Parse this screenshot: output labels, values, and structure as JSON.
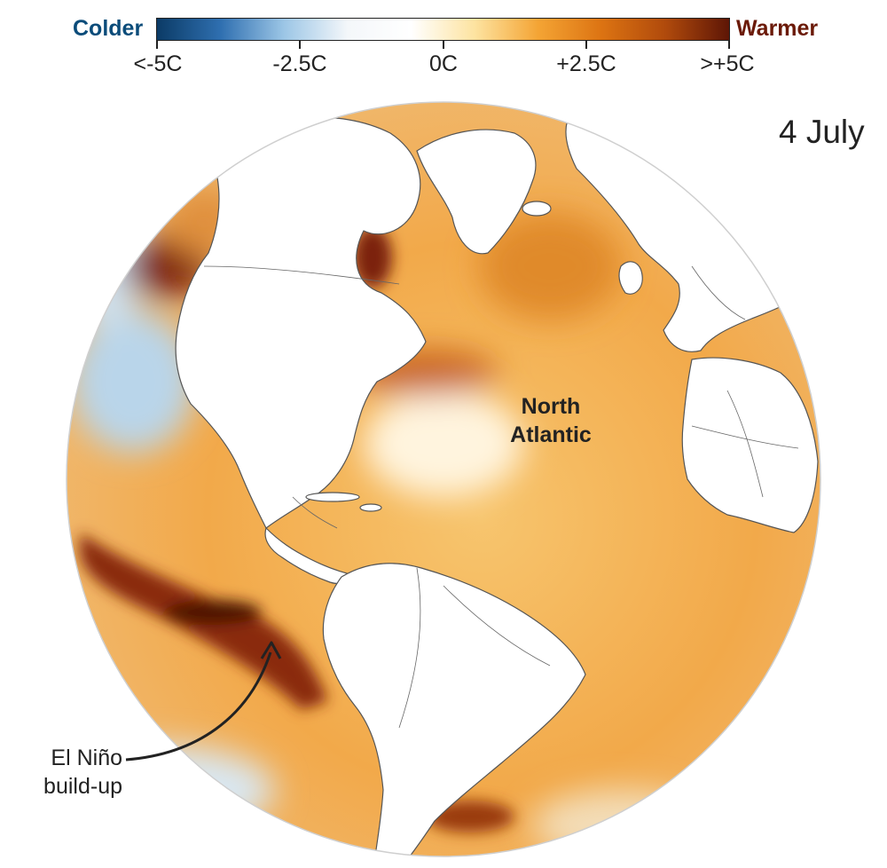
{
  "legend": {
    "cold_label": "Colder",
    "warm_label": "Warmer",
    "ticks": [
      "<-5C",
      "-2.5C",
      "0C",
      "+2.5C",
      ">+5C"
    ],
    "colors": [
      "#0b3b66",
      "#2f6fb0",
      "#9cc6e6",
      "#f4f7fa",
      "#ffffff",
      "#fde3a0",
      "#f4a434",
      "#dc7312",
      "#b04a0c",
      "#5e1606"
    ],
    "cold_label_color": "#0b4c7a",
    "warm_label_color": "#6b1a08"
  },
  "date": "4 July",
  "labels": {
    "north_atlantic_line1": "North",
    "north_atlantic_line2": "Atlantic",
    "el_nino_line1": "El Niño",
    "el_nino_line2": "build-up"
  }
}
